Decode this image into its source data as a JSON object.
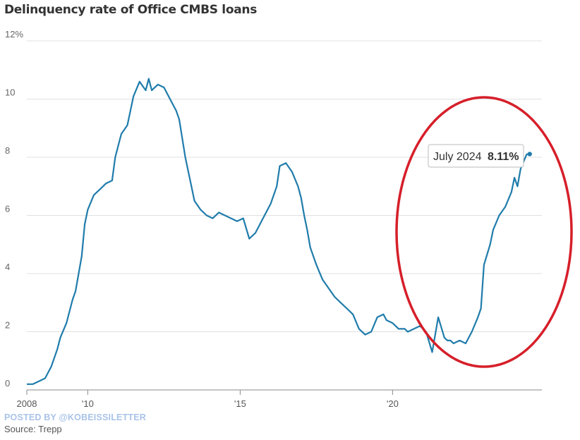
{
  "watermark": "POSTED BY @KOBEISSILETTER",
  "source": "Source: Trepp",
  "chart_data": {
    "type": "line",
    "title": "Delinquency rate of Office CMBS loans",
    "xlabel": "",
    "ylabel": "",
    "ylim": [
      0,
      12
    ],
    "xlim": [
      2008.0,
      2024.9
    ],
    "yticks": [
      {
        "value": 0,
        "label": "0"
      },
      {
        "value": 2,
        "label": "2"
      },
      {
        "value": 4,
        "label": "4"
      },
      {
        "value": 6,
        "label": "6"
      },
      {
        "value": 8,
        "label": "8"
      },
      {
        "value": 10,
        "label": "10"
      },
      {
        "value": 12,
        "label": "12%"
      }
    ],
    "xticks": [
      {
        "value": 2008,
        "label": "2008"
      },
      {
        "value": 2010,
        "label": "'10"
      },
      {
        "value": 2015,
        "label": "'15"
      },
      {
        "value": 2020,
        "label": "'20"
      }
    ],
    "grid": true,
    "annotation": {
      "x": 2024.5,
      "y": 8.11,
      "label": "July 2024",
      "value": "8.11%"
    },
    "highlight": "red ellipse around 2020–2024",
    "colors": {
      "line": "#1f7cab",
      "grid": "#e0e0e0",
      "highlight": "#d61f2a",
      "watermark": "#a9c3e8"
    },
    "series": [
      {
        "x": [
          2008.0,
          2008.2,
          2008.4,
          2008.6,
          2008.8,
          2009.0,
          2009.1,
          2009.3,
          2009.5,
          2009.6,
          2009.8,
          2009.9,
          2010.0,
          2010.2,
          2010.4,
          2010.6,
          2010.8,
          2010.9,
          2011.1,
          2011.3,
          2011.5,
          2011.7,
          2011.9,
          2012.0,
          2012.1,
          2012.3,
          2012.5,
          2012.7,
          2012.9,
          2013.0,
          2013.2,
          2013.4,
          2013.5,
          2013.7,
          2013.9,
          2014.1,
          2014.3,
          2014.5,
          2014.7,
          2014.9,
          2015.1,
          2015.3,
          2015.5,
          2015.8,
          2016.0,
          2016.2,
          2016.3,
          2016.5,
          2016.7,
          2016.9,
          2017.0,
          2017.1,
          2017.2,
          2017.3,
          2017.5,
          2017.7,
          2017.9,
          2018.1,
          2018.3,
          2018.5,
          2018.7,
          2018.9,
          2019.1,
          2019.3,
          2019.5,
          2019.7,
          2019.8,
          2020.0,
          2020.1,
          2020.2,
          2020.4,
          2020.5,
          2020.7,
          2020.9,
          2021.1,
          2021.3,
          2021.5,
          2021.7,
          2021.8,
          2021.9,
          2022.0,
          2022.2,
          2022.4,
          2022.6,
          2022.8,
          2022.9,
          2023.0,
          2023.2,
          2023.3,
          2023.5,
          2023.7,
          2023.9,
          2024.0,
          2024.1,
          2024.2,
          2024.4,
          2024.5
        ],
        "y": [
          0.2,
          0.2,
          0.3,
          0.4,
          0.8,
          1.4,
          1.8,
          2.3,
          3.1,
          3.4,
          4.6,
          5.7,
          6.2,
          6.7,
          6.9,
          7.1,
          7.2,
          8.0,
          8.8,
          9.1,
          10.1,
          10.6,
          10.3,
          10.7,
          10.3,
          10.5,
          10.4,
          10.0,
          9.6,
          9.3,
          8.0,
          7.0,
          6.5,
          6.2,
          6.0,
          5.9,
          6.1,
          6.0,
          5.9,
          5.8,
          5.9,
          5.2,
          5.4,
          6.0,
          6.4,
          7.0,
          7.7,
          7.8,
          7.5,
          7.0,
          6.6,
          6.0,
          5.5,
          4.9,
          4.3,
          3.8,
          3.5,
          3.2,
          3.0,
          2.8,
          2.6,
          2.1,
          1.9,
          2.0,
          2.5,
          2.6,
          2.4,
          2.3,
          2.2,
          2.1,
          2.1,
          2.0,
          2.1,
          2.2,
          2.0,
          1.3,
          2.5,
          1.8,
          1.7,
          1.7,
          1.6,
          1.7,
          1.6,
          2.0,
          2.5,
          2.8,
          4.3,
          5.0,
          5.5,
          6.0,
          6.3,
          6.8,
          7.3,
          7.0,
          7.6,
          8.1,
          8.11
        ]
      }
    ]
  }
}
